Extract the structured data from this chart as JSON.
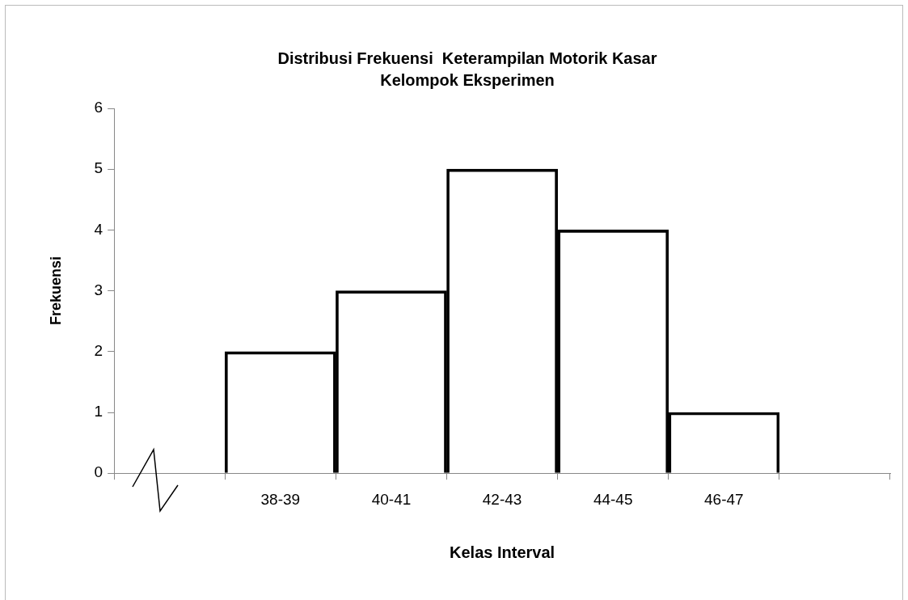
{
  "chart_data": {
    "type": "bar",
    "title": "Distribusi Frekuensi  Keterampilan Motorik Kasar\nKelompok Eksperimen",
    "xlabel": "Kelas Interval",
    "ylabel": "Frekuensi",
    "categories": [
      null,
      "38-39",
      "40-41",
      "42-43",
      "44-45",
      "46-47",
      null
    ],
    "values": [
      null,
      2,
      3,
      5,
      4,
      1,
      null
    ],
    "color": "#000000",
    "ylim": [
      0,
      6
    ],
    "yticks": [
      0,
      1,
      2,
      3,
      4,
      5,
      6
    ],
    "grid": false,
    "legend": false
  }
}
